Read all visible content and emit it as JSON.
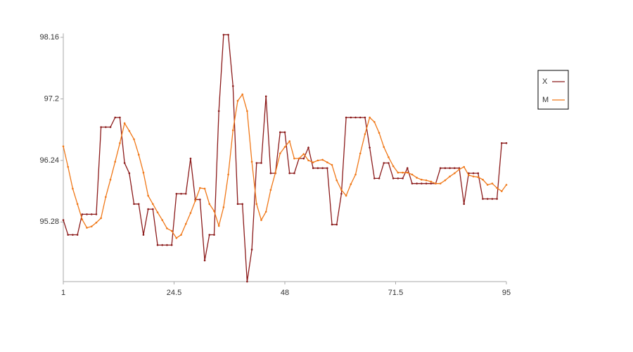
{
  "chart_data": {
    "type": "line",
    "x": [
      1,
      2,
      3,
      4,
      5,
      6,
      7,
      8,
      9,
      10,
      11,
      12,
      13,
      14,
      15,
      16,
      17,
      18,
      19,
      20,
      21,
      22,
      23,
      24,
      25,
      26,
      27,
      28,
      29,
      30,
      31,
      32,
      33,
      34,
      35,
      36,
      37,
      38,
      39,
      40,
      41,
      42,
      43,
      44,
      45,
      46,
      47,
      48,
      49,
      50,
      51,
      52,
      53,
      54,
      55,
      56,
      57,
      58,
      59,
      60,
      61,
      62,
      63,
      64,
      65,
      66,
      67,
      68,
      69,
      70,
      71,
      72,
      73,
      74,
      75,
      76,
      77,
      78,
      79,
      80,
      81,
      82,
      83,
      84,
      85,
      86,
      87,
      88,
      89,
      90,
      91,
      92,
      93,
      94,
      95
    ],
    "series": [
      {
        "name": "X",
        "color": "#8b1a1a",
        "values": [
          95.31,
          95.08,
          95.08,
          95.08,
          95.4,
          95.4,
          95.4,
          95.4,
          96.76,
          96.76,
          96.76,
          96.91,
          96.91,
          96.2,
          96.04,
          95.56,
          95.56,
          95.08,
          95.48,
          95.48,
          94.92,
          94.92,
          94.92,
          94.92,
          95.72,
          95.72,
          95.72,
          96.27,
          95.63,
          95.63,
          94.68,
          95.08,
          95.08,
          97.01,
          98.2,
          98.2,
          97.4,
          95.56,
          95.56,
          94.35,
          94.85,
          96.2,
          96.2,
          97.24,
          96.04,
          96.04,
          96.68,
          96.68,
          96.04,
          96.04,
          96.27,
          96.27,
          96.44,
          96.12,
          96.12,
          96.12,
          96.12,
          95.24,
          95.24,
          95.72,
          96.91,
          96.91,
          96.91,
          96.91,
          96.91,
          96.44,
          95.96,
          95.96,
          96.2,
          96.2,
          95.96,
          95.96,
          95.96,
          96.12,
          95.88,
          95.88,
          95.88,
          95.88,
          95.88,
          95.88,
          96.12,
          96.12,
          96.12,
          96.12,
          96.12,
          95.56,
          96.04,
          96.04,
          96.04,
          95.64,
          95.64,
          95.64,
          95.64,
          96.51,
          96.51
        ]
      },
      {
        "name": "M",
        "color": "#f07818",
        "values": [
          96.46,
          96.14,
          95.8,
          95.56,
          95.32,
          95.19,
          95.21,
          95.27,
          95.34,
          95.67,
          95.94,
          96.22,
          96.51,
          96.82,
          96.7,
          96.57,
          96.33,
          96.05,
          95.69,
          95.56,
          95.43,
          95.31,
          95.18,
          95.14,
          95.03,
          95.08,
          95.25,
          95.42,
          95.61,
          95.81,
          95.8,
          95.56,
          95.45,
          95.22,
          95.51,
          96.02,
          96.71,
          97.17,
          97.27,
          97.01,
          96.22,
          95.56,
          95.31,
          95.44,
          95.78,
          96.05,
          96.35,
          96.45,
          96.54,
          96.27,
          96.27,
          96.34,
          96.24,
          96.21,
          96.24,
          96.25,
          96.21,
          96.17,
          95.93,
          95.78,
          95.69,
          95.87,
          96.02,
          96.35,
          96.65,
          96.91,
          96.84,
          96.67,
          96.45,
          96.29,
          96.15,
          96.05,
          96.05,
          96.05,
          96.02,
          95.97,
          95.94,
          95.93,
          95.91,
          95.88,
          95.88,
          95.93,
          95.99,
          96.04,
          96.1,
          96.14,
          96.01,
          95.99,
          95.98,
          95.94,
          95.86,
          95.88,
          95.81,
          95.76,
          95.86
        ]
      }
    ],
    "xlim": [
      1,
      95
    ],
    "xticks": [
      1,
      24.5,
      48,
      71.5,
      95
    ],
    "ylim": [
      94.35,
      98.2
    ],
    "yticks": [
      95.28,
      96.24,
      97.2,
      98.16
    ],
    "grid": false,
    "legend": "right"
  }
}
